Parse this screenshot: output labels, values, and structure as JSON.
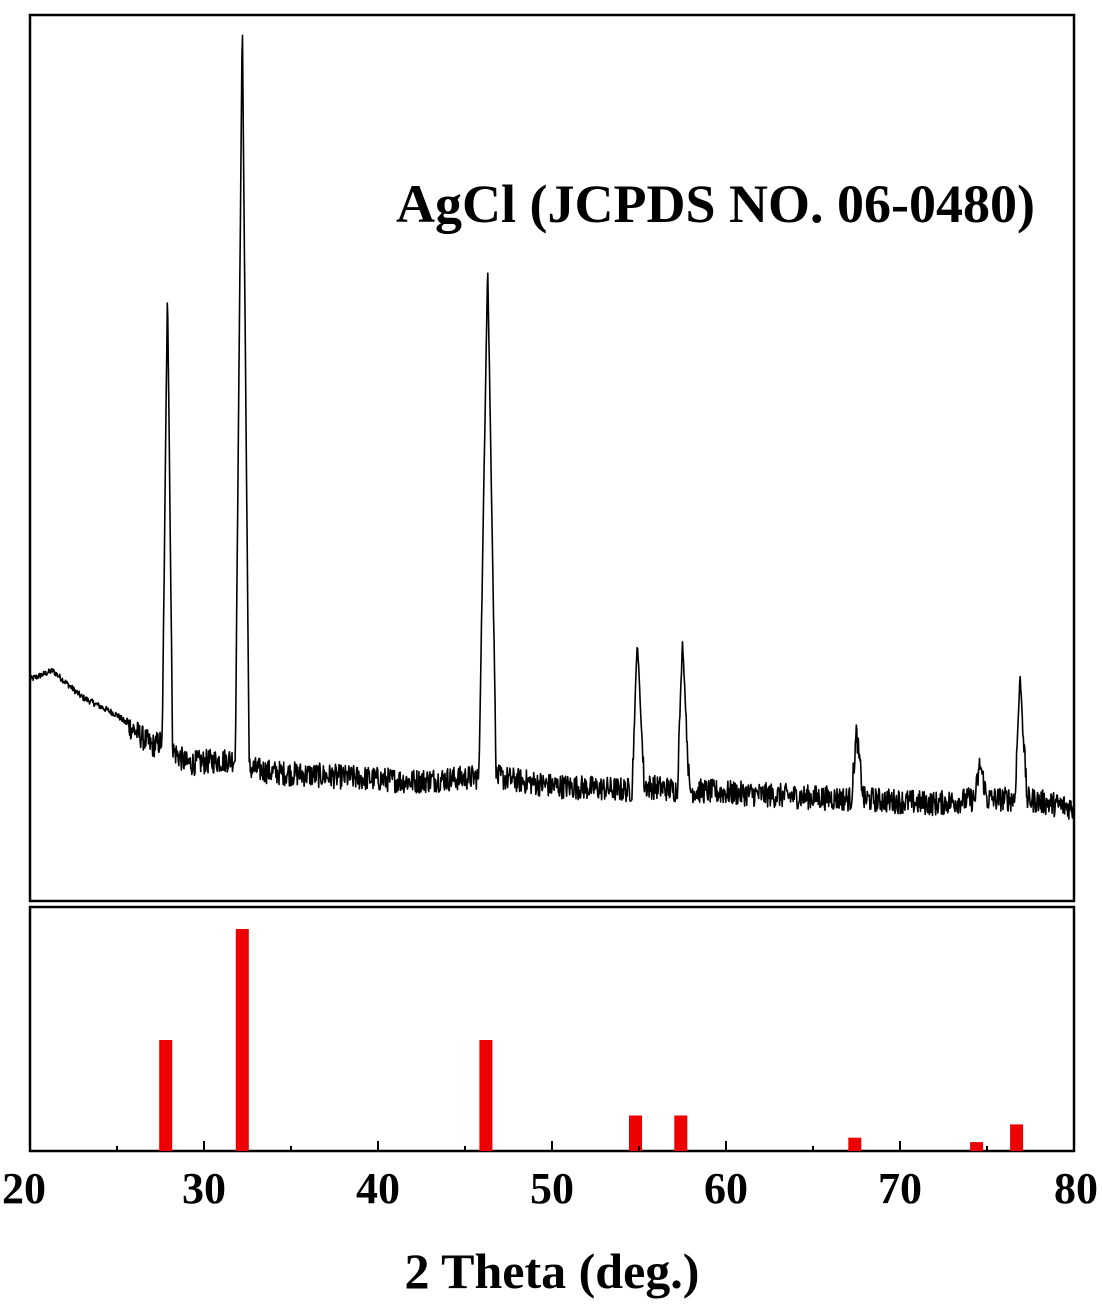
{
  "chart_data": [
    {
      "type": "line",
      "title": "",
      "annotation": "AgCl (JCPDS NO. 06-0480)",
      "xlabel": "",
      "ylabel": "",
      "xlim": [
        20,
        80
      ],
      "ylim": [
        0,
        100
      ],
      "grid": false,
      "line_color": "#000000",
      "noise_amplitude": 1.4,
      "x": [
        20,
        21.3,
        23,
        25,
        27,
        27.6,
        27.9,
        28.2,
        29,
        31.8,
        32.2,
        32.6,
        34,
        38,
        42,
        45.8,
        46.3,
        46.8,
        50,
        54.6,
        54.9,
        55.3,
        57.2,
        57.5,
        57.9,
        62,
        67.2,
        67.5,
        67.9,
        72,
        74.3,
        74.6,
        75,
        76.6,
        76.9,
        77.3,
        80
      ],
      "y": [
        25,
        26,
        23,
        21,
        17.5,
        18,
        69.5,
        17,
        15.5,
        16,
        99.5,
        15,
        14.5,
        14,
        13.5,
        14,
        72,
        14,
        13,
        12.5,
        29.5,
        13,
        12.5,
        29.5,
        12.5,
        12,
        11.5,
        19,
        11.5,
        11,
        11.5,
        15.5,
        11.5,
        11.5,
        25.5,
        11.5,
        10.5
      ]
    },
    {
      "type": "bar",
      "title": "",
      "xlabel": "2 Theta (deg.)",
      "ylabel": "",
      "xlim": [
        20,
        80
      ],
      "ylim": [
        0,
        100
      ],
      "xticks": [
        20,
        30,
        40,
        50,
        60,
        70,
        80
      ],
      "bar_color": "#ee0000",
      "x": [
        27.8,
        32.2,
        46.2,
        54.8,
        57.4,
        67.4,
        74.4,
        76.7
      ],
      "values": [
        50,
        100,
        50,
        16,
        16,
        6,
        4,
        12
      ]
    }
  ]
}
